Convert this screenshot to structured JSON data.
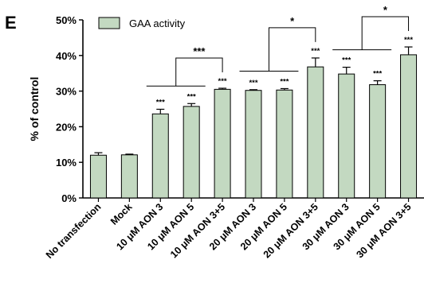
{
  "panel_label": "E",
  "colors": {
    "bar_fill": "#c3d9c1",
    "bar_stroke": "#000000"
  },
  "chart_data": {
    "type": "bar",
    "title": "",
    "xlabel": "",
    "ylabel": "% of control",
    "ylim": [
      0,
      50
    ],
    "y_ticks": [
      {
        "value": 0,
        "label": "0%"
      },
      {
        "value": 10,
        "label": "10%"
      },
      {
        "value": 20,
        "label": "20%"
      },
      {
        "value": 30,
        "label": "30%"
      },
      {
        "value": 40,
        "label": "40%"
      },
      {
        "value": 50,
        "label": "50%"
      }
    ],
    "grid": false,
    "legend_position": "top-left",
    "categories": [
      "No transfection",
      "Mock",
      "10 μM AON 3",
      "10 μM AON 5",
      "10 μM AON 3+5",
      "20 μM AON 3",
      "20 μM AON 5",
      "20 μM AON 3+5",
      "30 μM AON 3",
      "30 μM AON 5",
      "30 μM AON 3+5"
    ],
    "series": [
      {
        "name": "GAA activity",
        "values": [
          12.0,
          12.1,
          23.6,
          25.7,
          30.5,
          30.2,
          30.3,
          36.8,
          34.8,
          31.8,
          40.2
        ],
        "errors": [
          0.7,
          0.2,
          1.3,
          0.8,
          0.3,
          0.2,
          0.4,
          2.5,
          1.9,
          1.1,
          2.2
        ]
      }
    ],
    "significance_marks": [
      "",
      "",
      "***",
      "***",
      "***",
      "***",
      "***",
      "***",
      "***",
      "***",
      "***"
    ],
    "brackets": [
      {
        "group": [
          2,
          3
        ],
        "to": 4,
        "label": "***"
      },
      {
        "group": [
          5,
          6
        ],
        "to": 7,
        "label": "*"
      },
      {
        "group": [
          8,
          9
        ],
        "to": 10,
        "label": "*"
      }
    ]
  }
}
